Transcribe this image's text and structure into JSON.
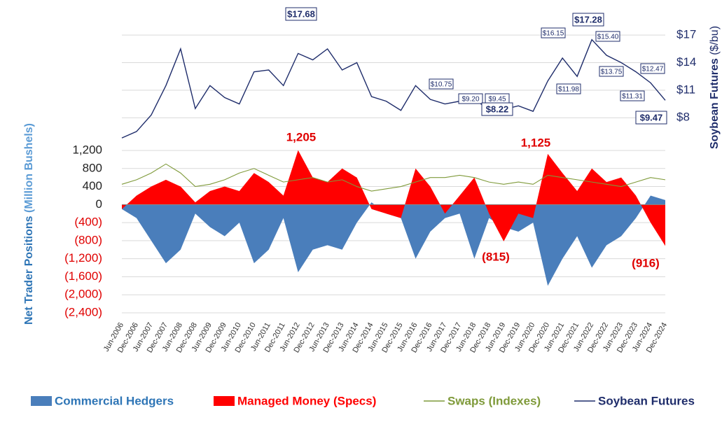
{
  "chart_data": {
    "type": "combo",
    "categories": [
      "Jun-2006",
      "Dec-2006",
      "Jun-2007",
      "Dec-2007",
      "Jun-2008",
      "Dec-2008",
      "Jun-2009",
      "Dec-2009",
      "Jun-2010",
      "Dec-2010",
      "Jun-2011",
      "Dec-2011",
      "Jun-2012",
      "Dec-2012",
      "Jun-2013",
      "Dec-2013",
      "Jun-2014",
      "Dec-2014",
      "Jun-2015",
      "Dec-2015",
      "Jun-2016",
      "Dec-2016",
      "Jun-2017",
      "Dec-2017",
      "Jun-2018",
      "Dec-2018",
      "Jun-2019",
      "Dec-2019",
      "Jun-2020",
      "Dec-2020",
      "Jun-2021",
      "Dec-2021",
      "Jun-2022",
      "Dec-2022",
      "Jun-2023",
      "Dec-2023",
      "Jun-2024",
      "Dec-2024"
    ],
    "series": [
      {
        "name": "Commercial Hedgers",
        "kind": "area",
        "color": "#4a7ebb",
        "values": [
          -100,
          -300,
          -800,
          -1300,
          -1000,
          -200,
          -500,
          -700,
          -400,
          -1300,
          -1000,
          -300,
          -1500,
          -1000,
          -900,
          -1000,
          -400,
          50,
          -200,
          -300,
          -1200,
          -600,
          -300,
          -200,
          -1200,
          -300,
          -500,
          -600,
          -400,
          -1800,
          -1200,
          -700,
          -1400,
          -900,
          -700,
          -300,
          200,
          100
        ]
      },
      {
        "name": "Managed Money (Specs)",
        "kind": "area",
        "color": "#ff0000",
        "values": [
          -100,
          200,
          400,
          550,
          400,
          50,
          300,
          400,
          300,
          700,
          500,
          200,
          1205,
          600,
          500,
          800,
          600,
          -100,
          -200,
          -300,
          800,
          400,
          -200,
          200,
          600,
          -200,
          -815,
          -200,
          -300,
          1125,
          700,
          300,
          800,
          500,
          600,
          200,
          -400,
          -916
        ]
      },
      {
        "name": "Swaps (Indexes)",
        "kind": "line",
        "color": "#7f9a3a",
        "values": [
          450,
          550,
          700,
          900,
          700,
          400,
          450,
          550,
          700,
          800,
          650,
          500,
          550,
          600,
          500,
          550,
          400,
          300,
          350,
          400,
          500,
          600,
          600,
          650,
          600,
          500,
          450,
          500,
          450,
          650,
          600,
          550,
          500,
          450,
          400,
          500,
          600,
          550
        ]
      },
      {
        "name": "Soybean Futures",
        "kind": "line",
        "axis": "y2",
        "color": "#1f2d6b",
        "values": [
          5.8,
          6.5,
          8.3,
          11.5,
          15.5,
          9.0,
          11.5,
          10.2,
          9.5,
          13.0,
          13.2,
          11.5,
          15.0,
          14.3,
          15.5,
          13.2,
          14.0,
          10.3,
          9.8,
          8.8,
          11.5,
          10.0,
          9.5,
          9.8,
          10.0,
          8.9,
          8.9,
          9.3,
          8.7,
          12.0,
          14.5,
          12.5,
          16.5,
          14.8,
          14.0,
          13.0,
          11.8,
          9.9
        ]
      }
    ],
    "ylim": [
      -2400,
      1200
    ],
    "yticks": [
      {
        "value": 1200,
        "label": "1,200"
      },
      800,
      400,
      0,
      {
        "value": -400,
        "label": "(400)"
      },
      {
        "value": -800,
        "label": "(800)"
      },
      {
        "value": -1200,
        "label": "(1,200)"
      },
      {
        "value": -1600,
        "label": "(1,600)"
      },
      {
        "value": -2000,
        "label": "(2,000)"
      },
      {
        "value": -2400,
        "label": "(2,400)"
      }
    ],
    "y2lim": [
      5.2,
      18
    ],
    "y2ticks": [
      {
        "value": 17,
        "label": "$17"
      },
      {
        "value": 14,
        "label": "$14"
      },
      {
        "value": 11,
        "label": "$11"
      },
      {
        "value": 8,
        "label": "$8"
      }
    ],
    "ylabel": [
      "Net Trader Positions",
      "(Million Bushels)"
    ],
    "y2label": [
      "Soybean Futures",
      "($/bu)"
    ],
    "price_labels": [
      "$17.68",
      "$16.15",
      "$17.28",
      "$15.40",
      "$13.75",
      "$11.98",
      "$12.47",
      "$11.31",
      "$9.47",
      "$10.75",
      "$9.20",
      "$9.45",
      "$8.22"
    ],
    "position_labels": [
      "1,205",
      "1,125",
      "(815)",
      "(916)"
    ],
    "grid": true
  }
}
